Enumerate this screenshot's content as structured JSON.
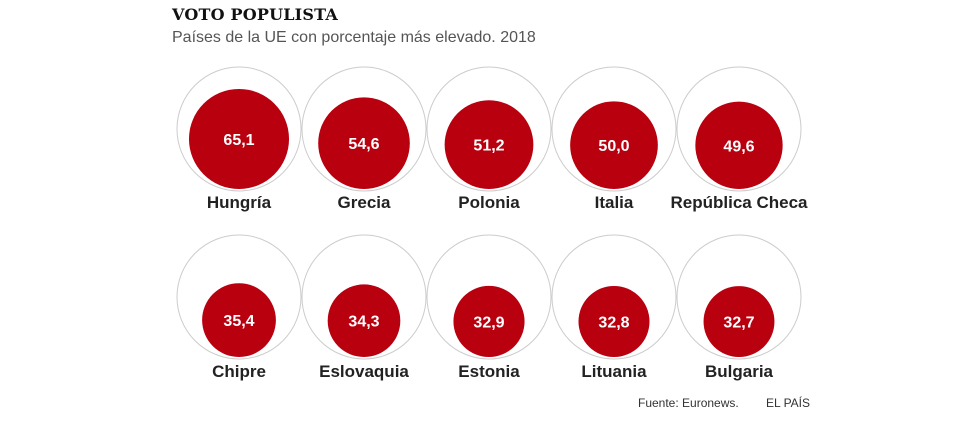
{
  "title": "VOTO POPULISTA",
  "subtitle": "Países de la UE con porcentaje más elevado. 2018",
  "footer": {
    "source": "Fuente: Euronews.",
    "brand": "EL PAÍS"
  },
  "colors": {
    "fill": "#b8000f",
    "ring": "#cccccc"
  },
  "chart_data": {
    "type": "proportional-circles",
    "unit": "%",
    "max_value": 100,
    "items": [
      {
        "country": "Hungría",
        "label": "65,1",
        "value": 65.1
      },
      {
        "country": "Grecia",
        "label": "54,6",
        "value": 54.6
      },
      {
        "country": "Polonia",
        "label": "51,2",
        "value": 51.2
      },
      {
        "country": "Italia",
        "label": "50,0",
        "value": 50.0
      },
      {
        "country": "República Checa",
        "label": "49,6",
        "value": 49.6
      },
      {
        "country": "Chipre",
        "label": "35,4",
        "value": 35.4
      },
      {
        "country": "Eslovaquia",
        "label": "34,3",
        "value": 34.3
      },
      {
        "country": "Estonia",
        "label": "32,9",
        "value": 32.9
      },
      {
        "country": "Lituania",
        "label": "32,8",
        "value": 32.8
      },
      {
        "country": "Bulgaria",
        "label": "32,7",
        "value": 32.7
      }
    ]
  }
}
